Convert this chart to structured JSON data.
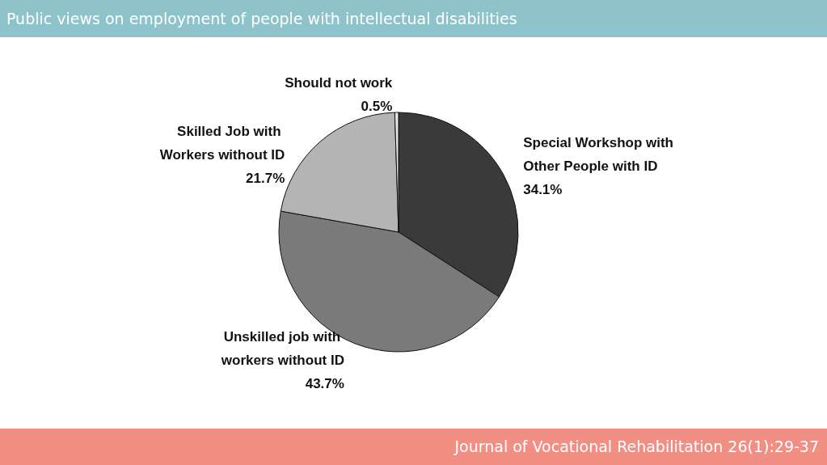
{
  "chart_data": {
    "type": "pie",
    "title": "Public views on employment of people with intellectual disabilities",
    "categories": [
      "Special Workshop with Other People with ID",
      "Unskilled job with workers without ID",
      "Skilled Job with Workers without ID",
      "Should not work"
    ],
    "values": [
      34.1,
      43.7,
      21.7,
      0.5
    ],
    "value_labels": [
      "34.1%",
      "43.7%",
      "21.7%",
      "0.5%"
    ],
    "colors": [
      "#3a3a3a",
      "#7a7a7a",
      "#b4b4b4",
      "#e6e6e6"
    ],
    "legend": false,
    "annotations": [
      "Journal of Vocational Rehabilitation 26(1):29-37"
    ]
  }
}
